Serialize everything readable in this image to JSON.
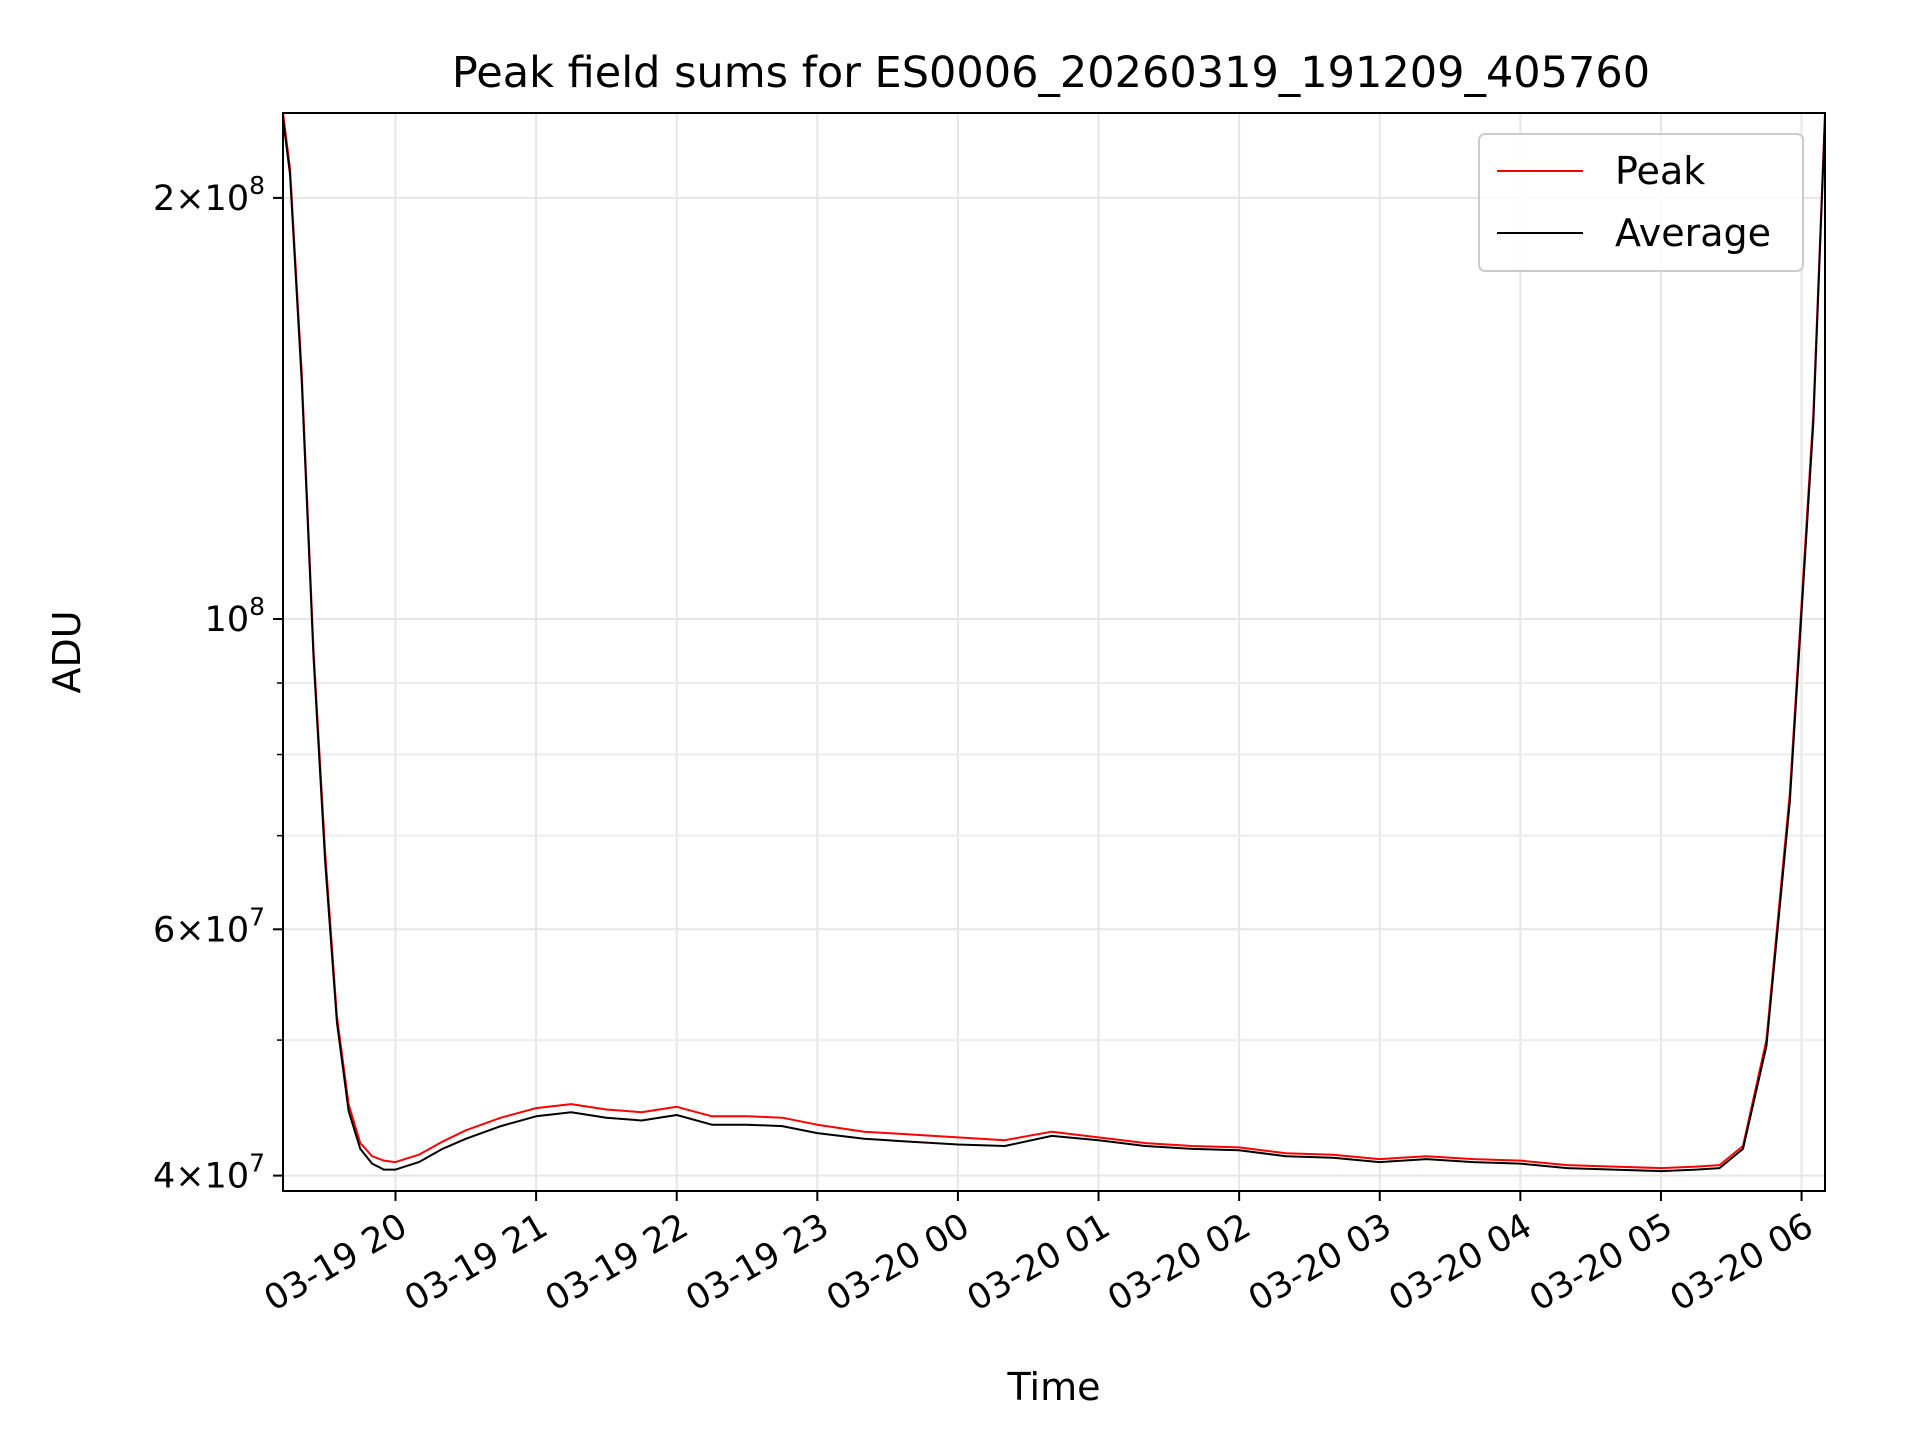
{
  "chart_data": {
    "type": "line",
    "title": "Peak field sums for ES0006_20260319_191209_405760",
    "xlabel": "Time",
    "ylabel": "ADU",
    "yscale": "log",
    "ylim": [
      39000000,
      230000000
    ],
    "xlim": [
      "2026-03-19 19:12",
      "2026-03-20 06:10"
    ],
    "grid": true,
    "legend_position": "upper right",
    "x_ticks": [
      {
        "t": "2026-03-19 20:00",
        "label": "03-19 20"
      },
      {
        "t": "2026-03-19 21:00",
        "label": "03-19 21"
      },
      {
        "t": "2026-03-19 22:00",
        "label": "03-19 22"
      },
      {
        "t": "2026-03-19 23:00",
        "label": "03-19 23"
      },
      {
        "t": "2026-03-20 00:00",
        "label": "03-20 00"
      },
      {
        "t": "2026-03-20 01:00",
        "label": "03-20 01"
      },
      {
        "t": "2026-03-20 02:00",
        "label": "03-20 02"
      },
      {
        "t": "2026-03-20 03:00",
        "label": "03-20 03"
      },
      {
        "t": "2026-03-20 04:00",
        "label": "03-20 04"
      },
      {
        "t": "2026-03-20 05:00",
        "label": "03-20 05"
      },
      {
        "t": "2026-03-20 06:00",
        "label": "03-20 06"
      }
    ],
    "y_ticks": [
      {
        "value": 40000000,
        "base": "4",
        "exp": "7"
      },
      {
        "value": 60000000,
        "base": "6",
        "exp": "7"
      },
      {
        "value": 100000000,
        "base": "",
        "exp": "8"
      },
      {
        "value": 200000000,
        "base": "2",
        "exp": "8"
      }
    ],
    "y_minor_ticks": [
      50000000,
      70000000,
      80000000,
      90000000
    ],
    "series": [
      {
        "name": "Peak",
        "color": "#ff0000",
        "x": [
          "2026-03-19 19:12",
          "2026-03-19 19:15",
          "2026-03-19 19:20",
          "2026-03-19 19:25",
          "2026-03-19 19:30",
          "2026-03-19 19:35",
          "2026-03-19 19:40",
          "2026-03-19 19:45",
          "2026-03-19 19:50",
          "2026-03-19 19:55",
          "2026-03-19 20:00",
          "2026-03-19 20:10",
          "2026-03-19 20:20",
          "2026-03-19 20:30",
          "2026-03-19 20:45",
          "2026-03-19 21:00",
          "2026-03-19 21:15",
          "2026-03-19 21:30",
          "2026-03-19 21:45",
          "2026-03-19 22:00",
          "2026-03-19 22:15",
          "2026-03-19 22:30",
          "2026-03-19 22:45",
          "2026-03-19 23:00",
          "2026-03-19 23:20",
          "2026-03-19 23:40",
          "2026-03-20 00:00",
          "2026-03-20 00:20",
          "2026-03-20 00:40",
          "2026-03-20 01:00",
          "2026-03-20 01:20",
          "2026-03-20 01:40",
          "2026-03-20 02:00",
          "2026-03-20 02:20",
          "2026-03-20 02:40",
          "2026-03-20 03:00",
          "2026-03-20 03:20",
          "2026-03-20 03:40",
          "2026-03-20 04:00",
          "2026-03-20 04:20",
          "2026-03-20 04:40",
          "2026-03-20 05:00",
          "2026-03-20 05:15",
          "2026-03-20 05:25",
          "2026-03-20 05:35",
          "2026-03-20 05:45",
          "2026-03-20 05:55",
          "2026-03-20 06:05",
          "2026-03-20 06:10"
        ],
        "y": [
          230000000,
          210000000,
          150000000,
          95000000,
          68000000,
          52000000,
          45000000,
          42200000,
          41300000,
          41000000,
          40900000,
          41400000,
          42300000,
          43100000,
          44000000,
          44700000,
          45000000,
          44600000,
          44400000,
          44800000,
          44100000,
          44100000,
          44000000,
          43500000,
          43000000,
          42800000,
          42600000,
          42400000,
          43000000,
          42600000,
          42200000,
          42000000,
          41900000,
          41500000,
          41400000,
          41100000,
          41300000,
          41100000,
          41000000,
          40700000,
          40600000,
          40500000,
          40600000,
          40700000,
          42000000,
          50000000,
          75000000,
          140000000,
          230000000
        ]
      },
      {
        "name": "Average",
        "color": "#000000",
        "x": [
          "2026-03-19 19:12",
          "2026-03-19 19:15",
          "2026-03-19 19:20",
          "2026-03-19 19:25",
          "2026-03-19 19:30",
          "2026-03-19 19:35",
          "2026-03-19 19:40",
          "2026-03-19 19:45",
          "2026-03-19 19:50",
          "2026-03-19 19:55",
          "2026-03-19 20:00",
          "2026-03-19 20:10",
          "2026-03-19 20:20",
          "2026-03-19 20:30",
          "2026-03-19 20:45",
          "2026-03-19 21:00",
          "2026-03-19 21:15",
          "2026-03-19 21:30",
          "2026-03-19 21:45",
          "2026-03-19 22:00",
          "2026-03-19 22:15",
          "2026-03-19 22:30",
          "2026-03-19 22:45",
          "2026-03-19 23:00",
          "2026-03-19 23:20",
          "2026-03-19 23:40",
          "2026-03-20 00:00",
          "2026-03-20 00:20",
          "2026-03-20 00:40",
          "2026-03-20 01:00",
          "2026-03-20 01:20",
          "2026-03-20 01:40",
          "2026-03-20 02:00",
          "2026-03-20 02:20",
          "2026-03-20 02:40",
          "2026-03-20 03:00",
          "2026-03-20 03:20",
          "2026-03-20 03:40",
          "2026-03-20 04:00",
          "2026-03-20 04:20",
          "2026-03-20 04:40",
          "2026-03-20 05:00",
          "2026-03-20 05:15",
          "2026-03-20 05:25",
          "2026-03-20 05:35",
          "2026-03-20 05:45",
          "2026-03-20 05:55",
          "2026-03-20 06:05",
          "2026-03-20 06:10"
        ],
        "y": [
          228000000,
          208000000,
          148000000,
          94000000,
          67000000,
          51500000,
          44500000,
          41800000,
          40800000,
          40400000,
          40400000,
          40900000,
          41800000,
          42500000,
          43400000,
          44100000,
          44400000,
          44000000,
          43800000,
          44200000,
          43500000,
          43500000,
          43400000,
          42900000,
          42500000,
          42300000,
          42100000,
          42000000,
          42700000,
          42400000,
          42000000,
          41800000,
          41700000,
          41300000,
          41200000,
          40900000,
          41100000,
          40900000,
          40800000,
          40500000,
          40400000,
          40300000,
          40400000,
          40500000,
          41800000,
          49500000,
          74000000,
          138000000,
          228000000
        ]
      }
    ]
  }
}
